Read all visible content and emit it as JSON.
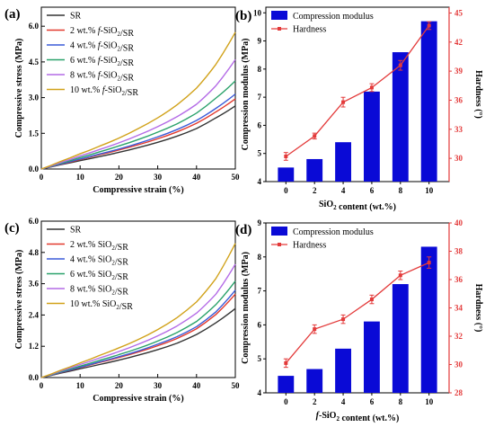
{
  "colors": {
    "SR": "#333333",
    "s2": "#e23a2e",
    "s4": "#3b5bd8",
    "s6": "#2aa26a",
    "s8": "#b46be6",
    "s10": "#d1a21a",
    "bar": "#0a0ad6",
    "hard": "#e33a3a",
    "axis": "#000000"
  },
  "chart_data": [
    {
      "panel": "(a)",
      "type": "line",
      "xlabel": "Compressive strain (%)",
      "ylabel": "Compressive stress (MPa)",
      "xlim": [
        0,
        50
      ],
      "ylim": [
        0,
        6.8
      ],
      "xticks": [
        "0",
        "10",
        "20",
        "30",
        "40",
        "50"
      ],
      "yticks": [
        "0.0",
        "1.5",
        "3.0",
        "4.5",
        "6.0"
      ],
      "legend_position": "top-left",
      "series": [
        {
          "name": "SR",
          "color_key": "SR",
          "x": [
            0,
            5,
            10,
            15,
            20,
            25,
            30,
            35,
            40,
            45,
            50
          ],
          "y": [
            0,
            0.18,
            0.35,
            0.52,
            0.7,
            0.9,
            1.12,
            1.38,
            1.7,
            2.15,
            2.65
          ]
        },
        {
          "name": "2 wt.% f-SiO2/SR",
          "color_key": "s2",
          "x": [
            0,
            5,
            10,
            15,
            20,
            25,
            30,
            35,
            40,
            45,
            50
          ],
          "y": [
            0,
            0.2,
            0.4,
            0.6,
            0.8,
            1.02,
            1.27,
            1.56,
            1.92,
            2.4,
            2.95
          ]
        },
        {
          "name": "4 wt.% f-SiO2/SR",
          "color_key": "s4",
          "x": [
            0,
            5,
            10,
            15,
            20,
            25,
            30,
            35,
            40,
            45,
            50
          ],
          "y": [
            0,
            0.21,
            0.42,
            0.63,
            0.84,
            1.08,
            1.35,
            1.66,
            2.04,
            2.55,
            3.15
          ]
        },
        {
          "name": "6 wt.% f-SiO2/SR",
          "color_key": "s6",
          "x": [
            0,
            5,
            10,
            15,
            20,
            25,
            30,
            35,
            40,
            45,
            50
          ],
          "y": [
            0,
            0.24,
            0.48,
            0.72,
            0.97,
            1.24,
            1.55,
            1.9,
            2.35,
            2.98,
            3.7
          ]
        },
        {
          "name": "8 wt.% f-SiO2/SR",
          "color_key": "s8",
          "x": [
            0,
            5,
            10,
            15,
            20,
            25,
            30,
            35,
            40,
            45,
            50
          ],
          "y": [
            0,
            0.27,
            0.55,
            0.82,
            1.1,
            1.42,
            1.78,
            2.2,
            2.72,
            3.5,
            4.6
          ]
        },
        {
          "name": "10 wt.% f-SiO2/SR",
          "color_key": "s10",
          "x": [
            0,
            5,
            10,
            15,
            20,
            25,
            30,
            35,
            40,
            45,
            50
          ],
          "y": [
            0,
            0.32,
            0.64,
            0.96,
            1.3,
            1.7,
            2.15,
            2.7,
            3.4,
            4.4,
            5.75
          ]
        }
      ]
    },
    {
      "panel": "(b)",
      "type": "bar",
      "xlabel": "SiO2 content (wt.%)",
      "ylabel": "Compression modulus (MPa)",
      "ylabel_right": "Hardness (°)",
      "categories": [
        "0",
        "2",
        "4",
        "6",
        "8",
        "10"
      ],
      "ylim": [
        4,
        10.2
      ],
      "yticks": [
        "4",
        "5",
        "6",
        "7",
        "8",
        "9",
        "10"
      ],
      "ylim_right": [
        27.6,
        45.6
      ],
      "yticks_right": [
        "30",
        "33",
        "36",
        "39",
        "42",
        "45"
      ],
      "legend_position": "top-left",
      "series": [
        {
          "name": "Compression modulus",
          "axis": "left",
          "color_key": "bar",
          "values": [
            4.5,
            4.8,
            5.4,
            7.2,
            8.6,
            9.7
          ]
        },
        {
          "name": "Hardness",
          "axis": "right",
          "color_key": "hard",
          "values": [
            30.2,
            32.3,
            35.8,
            37.3,
            39.6,
            43.7
          ],
          "errors": [
            0.4,
            0.3,
            0.5,
            0.4,
            0.5,
            0.4
          ]
        }
      ]
    },
    {
      "panel": "(c)",
      "type": "line",
      "xlabel": "Compressive strain (%)",
      "ylabel": "Compressive stress (MPa)",
      "xlim": [
        0,
        50
      ],
      "ylim": [
        0,
        6.0
      ],
      "xticks": [
        "0",
        "10",
        "20",
        "30",
        "40",
        "50"
      ],
      "yticks": [
        "0.0",
        "1.2",
        "2.4",
        "3.6",
        "4.8",
        "6.0"
      ],
      "legend_position": "top-left",
      "series": [
        {
          "name": "SR",
          "color_key": "SR",
          "x": [
            0,
            5,
            10,
            15,
            20,
            25,
            30,
            35,
            40,
            45,
            50
          ],
          "y": [
            0,
            0.17,
            0.34,
            0.5,
            0.67,
            0.86,
            1.07,
            1.32,
            1.65,
            2.1,
            2.65
          ]
        },
        {
          "name": "2 wt.% SiO2/SR",
          "color_key": "s2",
          "x": [
            0,
            5,
            10,
            15,
            20,
            25,
            30,
            35,
            40,
            45,
            50
          ],
          "y": [
            0,
            0.19,
            0.39,
            0.58,
            0.77,
            0.98,
            1.22,
            1.5,
            1.87,
            2.42,
            3.2
          ]
        },
        {
          "name": "4 wt.% SiO2/SR",
          "color_key": "s4",
          "x": [
            0,
            5,
            10,
            15,
            20,
            25,
            30,
            35,
            40,
            45,
            50
          ],
          "y": [
            0,
            0.2,
            0.4,
            0.6,
            0.8,
            1.02,
            1.28,
            1.57,
            1.95,
            2.52,
            3.35
          ]
        },
        {
          "name": "6 wt.% SiO2/SR",
          "color_key": "s6",
          "x": [
            0,
            5,
            10,
            15,
            20,
            25,
            30,
            35,
            40,
            45,
            50
          ],
          "y": [
            0,
            0.22,
            0.44,
            0.66,
            0.88,
            1.12,
            1.4,
            1.73,
            2.15,
            2.8,
            3.7
          ]
        },
        {
          "name": "8 wt.% SiO2/SR",
          "color_key": "s8",
          "x": [
            0,
            5,
            10,
            15,
            20,
            25,
            30,
            35,
            40,
            45,
            50
          ],
          "y": [
            0,
            0.25,
            0.5,
            0.75,
            1.0,
            1.28,
            1.6,
            1.98,
            2.47,
            3.2,
            4.35
          ]
        },
        {
          "name": "10 wt.% SiO2/SR",
          "color_key": "s10",
          "x": [
            0,
            5,
            10,
            15,
            20,
            25,
            30,
            35,
            40,
            45,
            50
          ],
          "y": [
            0,
            0.28,
            0.56,
            0.85,
            1.14,
            1.46,
            1.84,
            2.3,
            2.9,
            3.8,
            5.15
          ]
        }
      ]
    },
    {
      "panel": "(d)",
      "type": "bar",
      "xlabel": "f-SiO2 content (wt.%)",
      "ylabel": "Compression modulus (MPa)",
      "ylabel_right": "Hardness (°)",
      "categories": [
        "0",
        "2",
        "4",
        "6",
        "8",
        "10"
      ],
      "ylim": [
        4,
        9
      ],
      "yticks": [
        "4",
        "5",
        "6",
        "7",
        "8",
        "9"
      ],
      "ylim_right": [
        28,
        40
      ],
      "yticks_right": [
        "28",
        "30",
        "32",
        "34",
        "36",
        "38",
        "40"
      ],
      "legend_position": "top-left",
      "series": [
        {
          "name": "Compression modulus",
          "axis": "left",
          "color_key": "bar",
          "values": [
            4.5,
            4.7,
            5.3,
            6.1,
            7.2,
            8.3
          ]
        },
        {
          "name": "Hardness",
          "axis": "right",
          "color_key": "hard",
          "values": [
            30.1,
            32.5,
            33.2,
            34.6,
            36.3,
            37.2
          ],
          "errors": [
            0.3,
            0.3,
            0.3,
            0.3,
            0.3,
            0.4
          ]
        }
      ]
    }
  ]
}
